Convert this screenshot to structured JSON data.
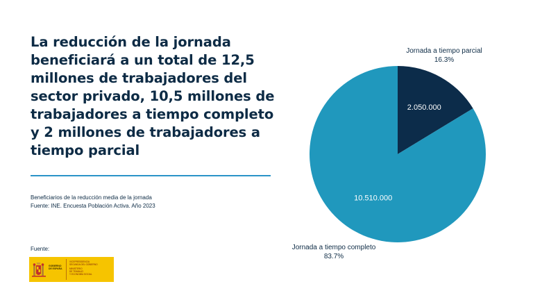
{
  "headline": "La reducción de la jornada beneficiará a un total de 12,5 millones de trabajadores del sector privado, 10,5 millones de trabajadores a tiempo completo y 2 millones de trabajadores a tiempo parcial",
  "caption": {
    "line1": "Beneficiarios de la reducción media de la jornada",
    "line2": "Fuente: INE. Encuesta Población Activa. Año 2023"
  },
  "source_label": "Fuente:",
  "logo": {
    "left_line1": "GOBIERNO",
    "left_line2": "DE ESPAÑA",
    "right_line1": "VICEPRESIDENCIA",
    "right_line2": "SEGUNDA DEL GOBIERNO",
    "right_line3": "MINISTERIO",
    "right_line4": "DE TRABAJO",
    "right_line5": "Y ECONOMÍA SOCIAL"
  },
  "colors": {
    "full_time": "#2098bd",
    "part_time": "#0c2c4a",
    "rule": "#2a93c7",
    "text": "#0d2b45"
  },
  "chart_data": {
    "type": "pie",
    "slices": [
      {
        "label": "Jornada a tiempo parcial",
        "value": 2050000,
        "value_label": "2.050.000",
        "percent_label": "16.3%"
      },
      {
        "label": "Jornada a tiempo completo",
        "value": 10510000,
        "value_label": "10.510.000",
        "percent_label": "83.7%"
      }
    ]
  }
}
